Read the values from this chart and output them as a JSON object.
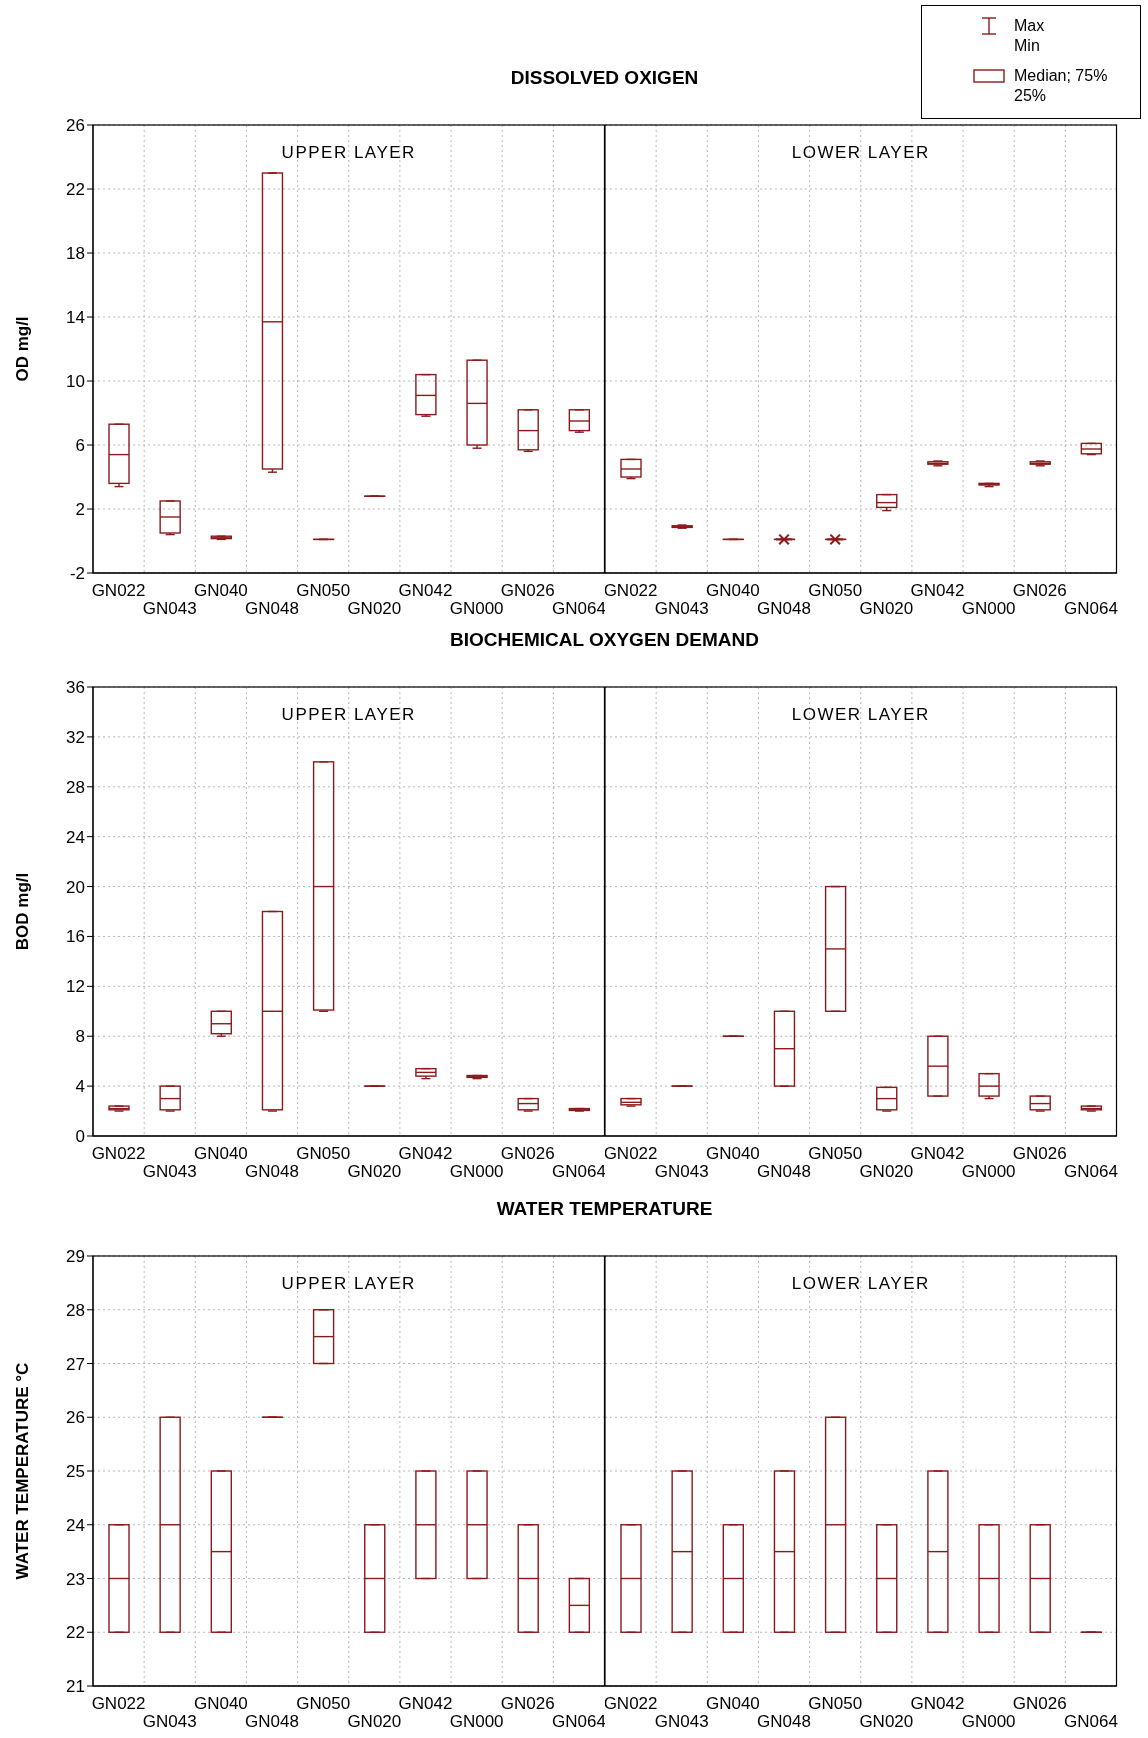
{
  "chart_data": [
    {
      "type": "box",
      "title": "DISSOLVED OXIGEN",
      "ylabel": "OD mg/l",
      "categories": [
        "GN022",
        "GN043",
        "GN040",
        "GN048",
        "GN050",
        "GN020",
        "GN042",
        "GN000",
        "GN026",
        "GN064"
      ],
      "color": "#8b1a1a",
      "boxes": [
        {
          "low": 3.4,
          "q1": 3.6,
          "median": 5.4,
          "q3": 7.3,
          "high": 7.3
        },
        {
          "low": 0.4,
          "q1": 0.5,
          "median": 1.5,
          "q3": 2.5,
          "high": 2.5
        },
        {
          "low": 0.1,
          "q1": 0.15,
          "median": 0.2,
          "q3": 0.3,
          "high": 0.3
        },
        {
          "low": 4.3,
          "q1": 4.5,
          "median": 13.7,
          "q3": 23,
          "high": 23
        },
        {
          "low": 0.1,
          "q1": 0.1,
          "median": 0.1,
          "q3": 0.1,
          "high": 0.1
        },
        {
          "low": 2.8,
          "q1": 2.8,
          "median": 2.8,
          "q3": 2.8,
          "high": 2.8
        },
        {
          "low": 7.8,
          "q1": 7.9,
          "median": 9.1,
          "q3": 10.4,
          "high": 10.4
        },
        {
          "low": 5.8,
          "q1": 6.0,
          "median": 8.6,
          "q3": 11.3,
          "high": 11.3
        },
        {
          "low": 5.6,
          "q1": 5.7,
          "median": 6.9,
          "q3": 8.2,
          "high": 8.2
        },
        {
          "low": 6.8,
          "q1": 6.9,
          "median": 7.5,
          "q3": 8.2,
          "high": 8.2
        }
      ],
      "ylim": [
        -2,
        26
      ],
      "yticks": [
        -2,
        2,
        6,
        10,
        14,
        18,
        22,
        26
      ],
      "grid": true,
      "annotations": [
        "UPPER LAYER",
        "Max",
        "Min",
        "Median; 75%",
        "25%"
      ]
    },
    {
      "type": "box",
      "categories": [
        "GN022",
        "GN043",
        "GN040",
        "GN048",
        "GN050",
        "GN020",
        "GN042",
        "GN000",
        "GN026",
        "GN064"
      ],
      "color": "#8b1a1a",
      "boxes": [
        {
          "low": 3.9,
          "q1": 4.0,
          "median": 4.5,
          "q3": 5.1,
          "high": 5.1
        },
        {
          "low": 0.8,
          "q1": 0.85,
          "median": 0.9,
          "q3": 0.95,
          "high": 1.0
        },
        {
          "low": 0.1,
          "q1": 0.1,
          "median": 0.1,
          "q3": 0.1,
          "high": 0.1
        },
        {
          "low": 0.1,
          "q1": 0.1,
          "median": 0.1,
          "q3": 0.1,
          "high": 0.1,
          "outliers": [
            0.1
          ]
        },
        {
          "low": 0.1,
          "q1": 0.1,
          "median": 0.1,
          "q3": 0.1,
          "high": 0.1,
          "outliers": [
            0.1
          ]
        },
        {
          "low": 1.9,
          "q1": 2.1,
          "median": 2.4,
          "q3": 2.9,
          "high": 2.9
        },
        {
          "low": 4.7,
          "q1": 4.8,
          "median": 4.85,
          "q3": 4.95,
          "high": 5.0
        },
        {
          "low": 3.4,
          "q1": 3.5,
          "median": 3.55,
          "q3": 3.6,
          "high": 3.6
        },
        {
          "low": 4.7,
          "q1": 4.8,
          "median": 4.85,
          "q3": 4.95,
          "high": 5.0
        },
        {
          "low": 5.4,
          "q1": 5.45,
          "median": 5.75,
          "q3": 6.1,
          "high": 6.1
        }
      ],
      "ylim": [
        -2,
        26
      ],
      "yticks": [
        -2,
        2,
        6,
        10,
        14,
        18,
        22,
        26
      ],
      "grid": true,
      "tick_labels": "x",
      "annotations": [
        "LOWER LAYER"
      ]
    },
    {
      "type": "box",
      "title": "BIOCHEMICAL OXYGEN DEMAND",
      "ylabel": "BOD  mg/l",
      "categories": [
        "GN022",
        "GN043",
        "GN040",
        "GN048",
        "GN050",
        "GN020",
        "GN042",
        "GN000",
        "GN026",
        "GN064"
      ],
      "color": "#8b1a1a",
      "boxes": [
        {
          "low": 2.0,
          "q1": 2.1,
          "median": 2.2,
          "q3": 2.4,
          "high": 2.4
        },
        {
          "low": 2.0,
          "q1": 2.1,
          "median": 3.0,
          "q3": 4.0,
          "high": 4.0
        },
        {
          "low": 8.0,
          "q1": 8.2,
          "median": 9.0,
          "q3": 10.0,
          "high": 10.0
        },
        {
          "low": 2.0,
          "q1": 2.1,
          "median": 10.0,
          "q3": 18.0,
          "high": 18.0
        },
        {
          "low": 10.0,
          "q1": 10.1,
          "median": 20.0,
          "q3": 30.0,
          "high": 30.0
        },
        {
          "low": 4.0,
          "q1": 4.0,
          "median": 4.0,
          "q3": 4.0,
          "high": 4.0
        },
        {
          "low": 4.6,
          "q1": 4.8,
          "median": 5.1,
          "q3": 5.4,
          "high": 5.4
        },
        {
          "low": 4.6,
          "q1": 4.7,
          "median": 4.75,
          "q3": 4.85,
          "high": 4.85
        },
        {
          "low": 2.0,
          "q1": 2.1,
          "median": 2.6,
          "q3": 3.0,
          "high": 3.0
        },
        {
          "low": 2.0,
          "q1": 2.05,
          "median": 2.1,
          "q3": 2.2,
          "high": 2.2
        }
      ],
      "ylim": [
        0,
        36
      ],
      "yticks": [
        0,
        4,
        8,
        12,
        16,
        20,
        24,
        28,
        32,
        36
      ],
      "grid": true,
      "annotations": [
        "UPPER LAYER"
      ]
    },
    {
      "type": "box",
      "categories": [
        "GN022",
        "GN043",
        "GN040",
        "GN048",
        "GN050",
        "GN020",
        "GN042",
        "GN000",
        "GN026",
        "GN064"
      ],
      "color": "#8b1a1a",
      "boxes": [
        {
          "low": 2.4,
          "q1": 2.5,
          "median": 2.7,
          "q3": 3.0,
          "high": 3.0
        },
        {
          "low": 4.0,
          "q1": 4.0,
          "median": 4.0,
          "q3": 4.0,
          "high": 4.0
        },
        {
          "low": 8.0,
          "q1": 8.0,
          "median": 8.0,
          "q3": 8.0,
          "high": 8.0
        },
        {
          "low": 4.0,
          "q1": 4.0,
          "median": 7.0,
          "q3": 10.0,
          "high": 10.0
        },
        {
          "low": 10.0,
          "q1": 10.0,
          "median": 15.0,
          "q3": 20.0,
          "high": 20.0
        },
        {
          "low": 2.0,
          "q1": 2.1,
          "median": 3.0,
          "q3": 3.9,
          "high": 3.9
        },
        {
          "low": 3.2,
          "q1": 3.2,
          "median": 5.6,
          "q3": 8.0,
          "high": 8.0
        },
        {
          "low": 3.0,
          "q1": 3.2,
          "median": 4.0,
          "q3": 5.0,
          "high": 5.0
        },
        {
          "low": 2.0,
          "q1": 2.1,
          "median": 2.6,
          "q3": 3.2,
          "high": 3.2
        },
        {
          "low": 2.0,
          "q1": 2.1,
          "median": 2.2,
          "q3": 2.4,
          "high": 2.4
        }
      ],
      "ylim": [
        0,
        36
      ],
      "yticks": [
        0,
        4,
        8,
        12,
        16,
        20,
        24,
        28,
        32,
        36
      ],
      "grid": true,
      "tick_labels": "x",
      "annotations": [
        "LOWER LAYER"
      ]
    },
    {
      "type": "box",
      "title": "WATER TEMPERATURE",
      "ylabel": "WATER  TEMPERATURE °C",
      "categories": [
        "GN022",
        "GN043",
        "GN040",
        "GN048",
        "GN050",
        "GN020",
        "GN042",
        "GN000",
        "GN026",
        "GN064"
      ],
      "color": "#8b1a1a",
      "boxes": [
        {
          "low": 22,
          "q1": 22,
          "median": 23,
          "q3": 24,
          "high": 24
        },
        {
          "low": 22,
          "q1": 22,
          "median": 24,
          "q3": 26,
          "high": 26
        },
        {
          "low": 22,
          "q1": 22,
          "median": 23.5,
          "q3": 25,
          "high": 25
        },
        {
          "low": 26,
          "q1": 26,
          "median": 26,
          "q3": 26,
          "high": 26
        },
        {
          "low": 27,
          "q1": 27,
          "median": 27.5,
          "q3": 28,
          "high": 28
        },
        {
          "low": 22,
          "q1": 22,
          "median": 23,
          "q3": 24,
          "high": 24
        },
        {
          "low": 23,
          "q1": 23,
          "median": 24,
          "q3": 25,
          "high": 25
        },
        {
          "low": 23,
          "q1": 23,
          "median": 24,
          "q3": 25,
          "high": 25
        },
        {
          "low": 22,
          "q1": 22,
          "median": 23,
          "q3": 24,
          "high": 24
        },
        {
          "low": 22,
          "q1": 22,
          "median": 22.5,
          "q3": 23,
          "high": 23
        }
      ],
      "ylim": [
        21,
        29
      ],
      "yticks": [
        21,
        22,
        23,
        24,
        25,
        26,
        27,
        28,
        29
      ],
      "grid": true,
      "annotations": [
        "UPPER LAYER"
      ]
    },
    {
      "type": "box",
      "categories": [
        "GN022",
        "GN043",
        "GN040",
        "GN048",
        "GN050",
        "GN020",
        "GN042",
        "GN000",
        "GN026",
        "GN064"
      ],
      "color": "#8b1a1a",
      "boxes": [
        {
          "low": 22,
          "q1": 22,
          "median": 23,
          "q3": 24,
          "high": 24
        },
        {
          "low": 22,
          "q1": 22,
          "median": 23.5,
          "q3": 25,
          "high": 25
        },
        {
          "low": 22,
          "q1": 22,
          "median": 23,
          "q3": 24,
          "high": 24
        },
        {
          "low": 22,
          "q1": 22,
          "median": 23.5,
          "q3": 25,
          "high": 25
        },
        {
          "low": 22,
          "q1": 22,
          "median": 24,
          "q3": 26,
          "high": 26
        },
        {
          "low": 22,
          "q1": 22,
          "median": 23,
          "q3": 24,
          "high": 24
        },
        {
          "low": 22,
          "q1": 22,
          "median": 23.5,
          "q3": 25,
          "high": 25
        },
        {
          "low": 22,
          "q1": 22,
          "median": 23,
          "q3": 24,
          "high": 24
        },
        {
          "low": 22,
          "q1": 22,
          "median": 23,
          "q3": 24,
          "high": 24
        },
        {
          "low": 22,
          "q1": 22,
          "median": 22,
          "q3": 22,
          "high": 22
        }
      ],
      "ylim": [
        21,
        29
      ],
      "yticks": [
        21,
        22,
        23,
        24,
        25,
        26,
        27,
        28,
        29
      ],
      "grid": true,
      "tick_labels": "x",
      "annotations": [
        "LOWER LAYER"
      ]
    }
  ]
}
